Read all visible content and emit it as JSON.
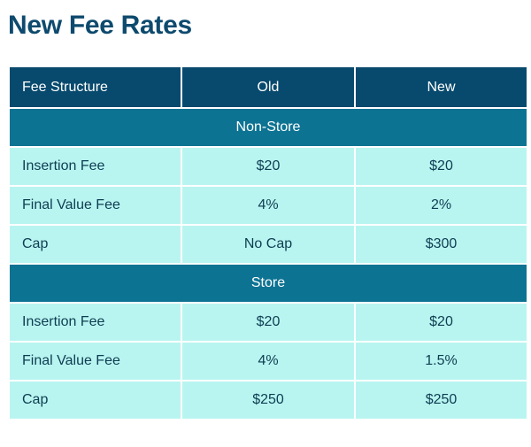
{
  "title": "New Fee Rates",
  "headers": [
    "Fee Structure",
    "Old",
    "New"
  ],
  "sections": [
    {
      "name": "Non-Store",
      "rows": [
        {
          "label": "Insertion Fee",
          "old": "$20",
          "new": "$20"
        },
        {
          "label": "Final Value Fee",
          "old": "4%",
          "new": "2%"
        },
        {
          "label": "Cap",
          "old": "No Cap",
          "new": "$300"
        }
      ]
    },
    {
      "name": "Store",
      "rows": [
        {
          "label": "Insertion Fee",
          "old": "$20",
          "new": "$20"
        },
        {
          "label": "Final Value Fee",
          "old": "4%",
          "new": "1.5%"
        },
        {
          "label": "Cap",
          "old": "$250",
          "new": "$250"
        }
      ]
    }
  ],
  "colors": {
    "title": "#0d4a6e",
    "header_bg": "#084a6e",
    "section_bg": "#0d7393",
    "row_bg": "#b9f5f0",
    "row_text": "#0d3d52"
  }
}
